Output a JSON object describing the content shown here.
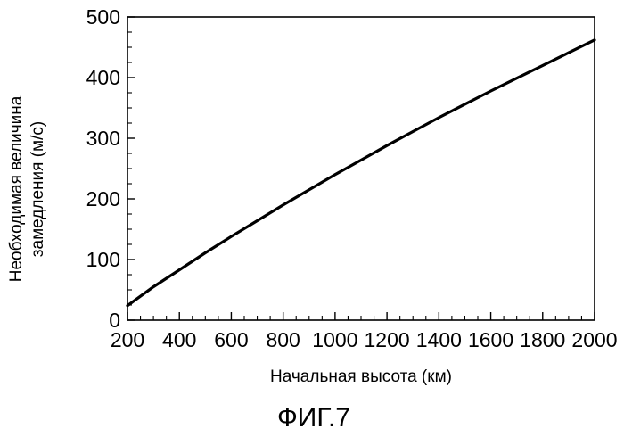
{
  "chart_data": {
    "type": "line",
    "title": "",
    "xlabel": "Начальная высота (км)",
    "ylabel_lines": [
      "Необходимая величина",
      "замедления (м/с)"
    ],
    "xlim": [
      200,
      2000
    ],
    "ylim": [
      0,
      500
    ],
    "xticks": [
      200,
      400,
      600,
      800,
      1000,
      1200,
      1400,
      1600,
      1800,
      2000
    ],
    "yticks": [
      0,
      100,
      200,
      300,
      400,
      500
    ],
    "grid": false,
    "legend": "none",
    "series": [
      {
        "x": [
          200,
          300,
          400,
          500,
          600,
          700,
          800,
          900,
          1000,
          1100,
          1200,
          1300,
          1400,
          1500,
          1600,
          1700,
          1800,
          1900,
          2000
        ],
        "y": [
          24,
          55,
          83,
          111,
          138,
          164,
          190,
          215,
          240,
          264,
          288,
          311,
          334,
          356,
          378,
          399,
          420,
          441,
          462
        ],
        "color": "#000000"
      }
    ]
  },
  "caption": "ФИГ.7"
}
